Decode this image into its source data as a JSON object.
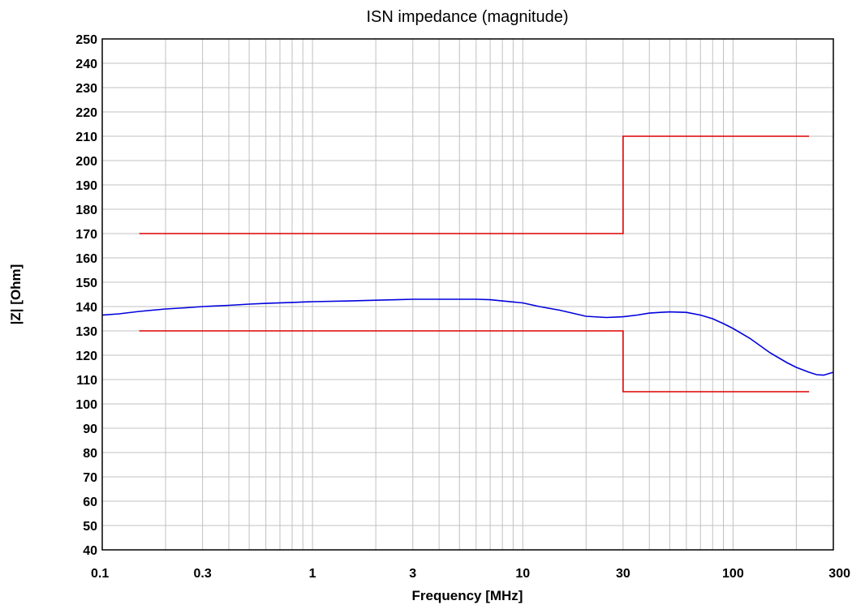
{
  "chart_data": {
    "type": "line",
    "title": "ISN impedance (magnitude)",
    "xlabel": "Frequency [MHz]",
    "ylabel": "|Z| [Ohm]",
    "x_scale": "log",
    "xlim": [
      0.1,
      300
    ],
    "ylim": [
      40,
      250
    ],
    "grid": true,
    "x_tick_labels": [
      "0.1",
      "0.3",
      "1",
      "3",
      "10",
      "30",
      "100",
      "300"
    ],
    "x_tick_values": [
      0.1,
      0.3,
      1,
      3,
      10,
      30,
      100,
      300
    ],
    "y_tick_values": [
      40,
      50,
      60,
      70,
      80,
      90,
      100,
      110,
      120,
      130,
      140,
      150,
      160,
      170,
      180,
      190,
      200,
      210,
      220,
      230,
      240,
      250
    ],
    "series": [
      {
        "color": "#0000dd",
        "x": [
          0.1,
          0.12,
          0.15,
          0.2,
          0.25,
          0.3,
          0.4,
          0.5,
          0.6,
          0.8,
          1,
          1.5,
          2,
          2.5,
          3,
          4,
          5,
          6,
          7,
          8,
          10,
          12,
          15,
          20,
          25,
          30,
          35,
          40,
          45,
          50,
          60,
          70,
          80,
          90,
          100,
          120,
          150,
          180,
          200,
          230,
          250,
          270,
          300
        ],
        "y": [
          136.5,
          137,
          138,
          139,
          139.5,
          140,
          140.5,
          141,
          141.3,
          141.7,
          142,
          142.3,
          142.6,
          142.8,
          143,
          143,
          143,
          143,
          142.8,
          142.3,
          141.5,
          140,
          138.5,
          136,
          135.5,
          135.8,
          136.5,
          137.3,
          137.6,
          137.8,
          137.6,
          136.5,
          135,
          133,
          131,
          127,
          121,
          117,
          115,
          113,
          112,
          111.8,
          113
        ]
      },
      {
        "color": "#dd0000",
        "x": [
          0.15,
          30,
          30,
          230
        ],
        "y": [
          170,
          170,
          210,
          210
        ]
      },
      {
        "color": "#dd0000",
        "x": [
          0.15,
          30,
          30,
          230
        ],
        "y": [
          130,
          130,
          105,
          105
        ]
      }
    ]
  }
}
